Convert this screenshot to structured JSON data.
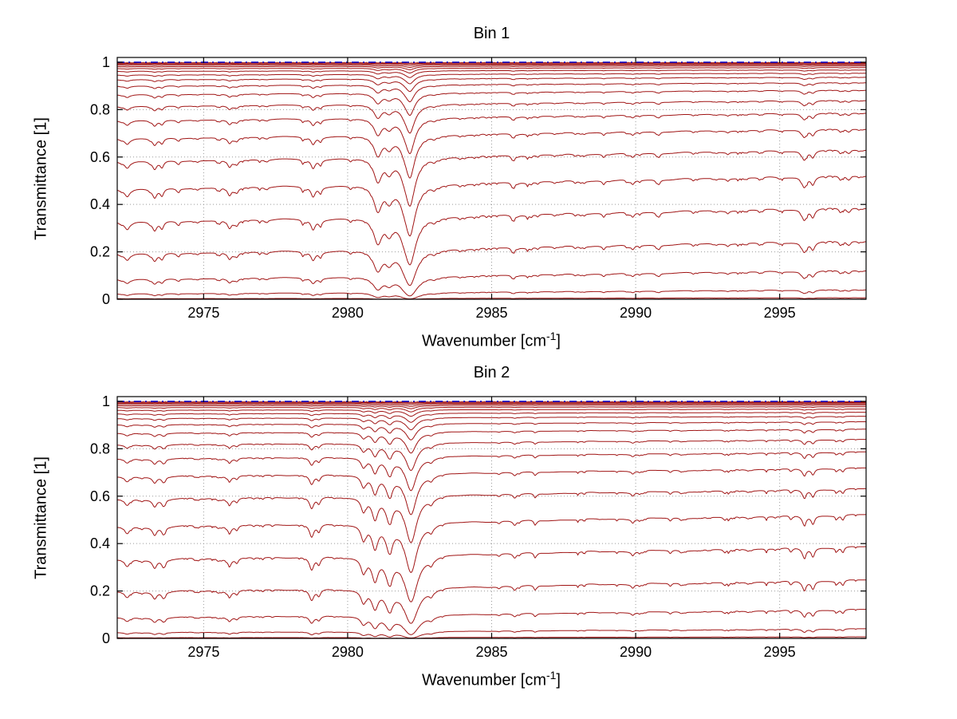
{
  "figure": {
    "background": "#ffffff"
  },
  "chart_data": [
    {
      "type": "line",
      "title": "Bin 1",
      "xlabel_prefix": "Wavenumber [cm",
      "xlabel_sup": "-1",
      "xlabel_suffix": "]",
      "ylabel": "Transmittance [1]",
      "xlim": [
        2972,
        2998
      ],
      "ylim": [
        0,
        1.02
      ],
      "xticks": [
        2975,
        2980,
        2985,
        2990,
        2995
      ],
      "yticks": [
        0,
        0.2,
        0.4,
        0.6,
        0.8,
        1
      ],
      "grid": true,
      "legend": "none",
      "curve_color": "#a01414",
      "axis_color": "#000000",
      "reference_line": {
        "y": 1.0,
        "color": "#0000cc",
        "style": "dash-dot"
      },
      "baseline_slope": 0.18,
      "wiggle_amp": 0.012,
      "absorber_scales": [
        0.002,
        0.004,
        0.007,
        0.011,
        0.016,
        0.023,
        0.033,
        0.047,
        0.065,
        0.09,
        0.125,
        0.175,
        0.24,
        0.33,
        0.46,
        0.65,
        0.95,
        1.4,
        2.1,
        3.2,
        5.0,
        8.0,
        13.0
      ],
      "lines_format": [
        "center_wavenumber",
        "depth",
        "half_width"
      ],
      "lines": [
        [
          2972.35,
          0.1,
          0.1
        ],
        [
          2973.3,
          0.13,
          0.09
        ],
        [
          2973.55,
          0.1,
          0.08
        ],
        [
          2974.1,
          0.04,
          0.06
        ],
        [
          2975.55,
          0.05,
          0.06
        ],
        [
          2975.9,
          0.12,
          0.09
        ],
        [
          2976.15,
          0.07,
          0.07
        ],
        [
          2977.2,
          0.03,
          0.05
        ],
        [
          2978.45,
          0.05,
          0.06
        ],
        [
          2978.8,
          0.15,
          0.09
        ],
        [
          2979.05,
          0.08,
          0.07
        ],
        [
          2980.1,
          0.04,
          0.05
        ],
        [
          2981.05,
          0.38,
          0.16
        ],
        [
          2981.45,
          0.18,
          0.12
        ],
        [
          2982.15,
          0.85,
          0.22
        ],
        [
          2983.0,
          0.05,
          0.08
        ],
        [
          2983.9,
          0.03,
          0.05
        ],
        [
          2985.75,
          0.06,
          0.07
        ],
        [
          2986.6,
          0.03,
          0.05
        ],
        [
          2987.9,
          0.03,
          0.05
        ],
        [
          2989.9,
          0.06,
          0.07
        ],
        [
          2990.8,
          0.04,
          0.05
        ],
        [
          2992.0,
          0.03,
          0.05
        ],
        [
          2993.2,
          0.03,
          0.05
        ],
        [
          2994.3,
          0.03,
          0.05
        ],
        [
          2995.85,
          0.13,
          0.09
        ],
        [
          2996.15,
          0.1,
          0.08
        ],
        [
          2997.1,
          0.04,
          0.05
        ]
      ],
      "noise": {
        "seed": 7,
        "count": 90,
        "depth_min": 0.004,
        "depth_max": 0.03,
        "width_min": 0.015,
        "width_max": 0.06
      }
    },
    {
      "type": "line",
      "title": "Bin 2",
      "xlabel_prefix": "Wavenumber [cm",
      "xlabel_sup": "-1",
      "xlabel_suffix": "]",
      "ylabel": "Transmittance [1]",
      "xlim": [
        2972,
        2998
      ],
      "ylim": [
        0,
        1.02
      ],
      "xticks": [
        2975,
        2980,
        2985,
        2990,
        2995
      ],
      "yticks": [
        0,
        0.2,
        0.4,
        0.6,
        0.8,
        1
      ],
      "grid": true,
      "legend": "none",
      "curve_color": "#a01414",
      "axis_color": "#000000",
      "reference_line": {
        "y": 1.0,
        "color": "#0000cc",
        "style": "dash-dot"
      },
      "baseline_slope": 0.16,
      "wiggle_amp": 0.012,
      "absorber_scales": [
        0.002,
        0.004,
        0.007,
        0.011,
        0.016,
        0.023,
        0.033,
        0.047,
        0.065,
        0.09,
        0.125,
        0.175,
        0.24,
        0.33,
        0.46,
        0.65,
        0.95,
        1.4,
        2.1,
        3.2,
        5.0,
        8.0,
        13.0
      ],
      "lines_format": [
        "center_wavenumber",
        "depth",
        "half_width"
      ],
      "lines": [
        [
          2972.35,
          0.1,
          0.1
        ],
        [
          2973.3,
          0.12,
          0.09
        ],
        [
          2973.6,
          0.09,
          0.08
        ],
        [
          2975.9,
          0.1,
          0.08
        ],
        [
          2976.15,
          0.06,
          0.07
        ],
        [
          2978.75,
          0.18,
          0.09
        ],
        [
          2979.0,
          0.1,
          0.07
        ],
        [
          2980.55,
          0.22,
          0.1
        ],
        [
          2980.95,
          0.35,
          0.12
        ],
        [
          2981.45,
          0.4,
          0.14
        ],
        [
          2982.2,
          0.85,
          0.22
        ],
        [
          2982.9,
          0.08,
          0.08
        ],
        [
          2985.8,
          0.06,
          0.07
        ],
        [
          2986.5,
          0.04,
          0.05
        ],
        [
          2989.9,
          0.05,
          0.06
        ],
        [
          2991.2,
          0.04,
          0.05
        ],
        [
          2993.1,
          0.04,
          0.05
        ],
        [
          2995.85,
          0.11,
          0.08
        ],
        [
          2996.15,
          0.09,
          0.07
        ],
        [
          2997.2,
          0.04,
          0.05
        ]
      ],
      "noise": {
        "seed": 13,
        "count": 90,
        "depth_min": 0.004,
        "depth_max": 0.03,
        "width_min": 0.015,
        "width_max": 0.06
      }
    }
  ]
}
